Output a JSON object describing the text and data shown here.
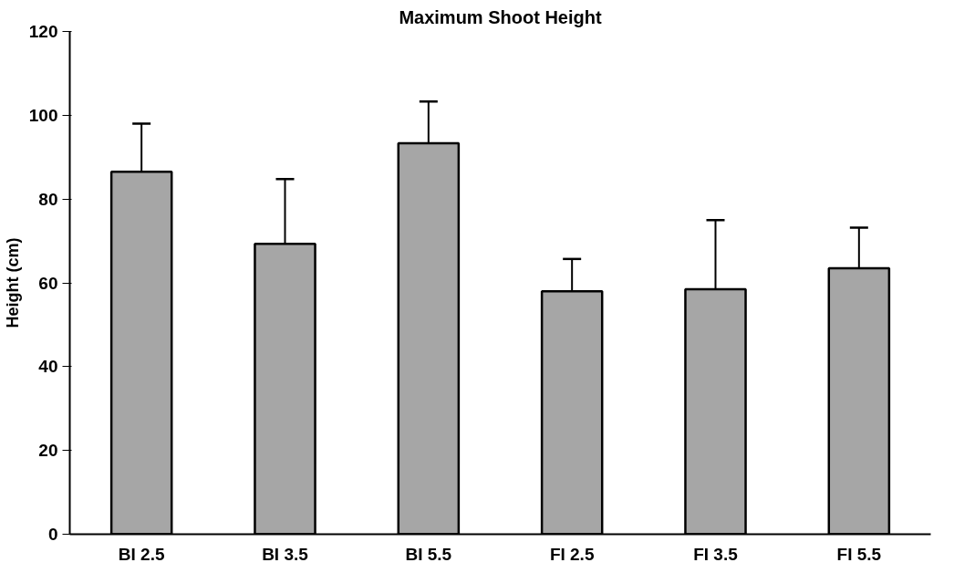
{
  "chart_data": {
    "type": "bar",
    "title": "Maximum Shoot Height",
    "ylabel": "Height (cm)",
    "categories": [
      "BI 2.5",
      "BI 3.5",
      "BI 5.5",
      "FI 2.5",
      "FI 3.5",
      "FI 5.5"
    ],
    "values": [
      86.5,
      69.3,
      93.3,
      58,
      58.5,
      63.5
    ],
    "errors": [
      11.5,
      15.5,
      10,
      7.7,
      16.5,
      9.7
    ],
    "color": "#a6a6a6",
    "ylim": [
      0,
      120
    ],
    "yticks": [
      0,
      20,
      40,
      60,
      80,
      100,
      120
    ],
    "grid": false
  }
}
